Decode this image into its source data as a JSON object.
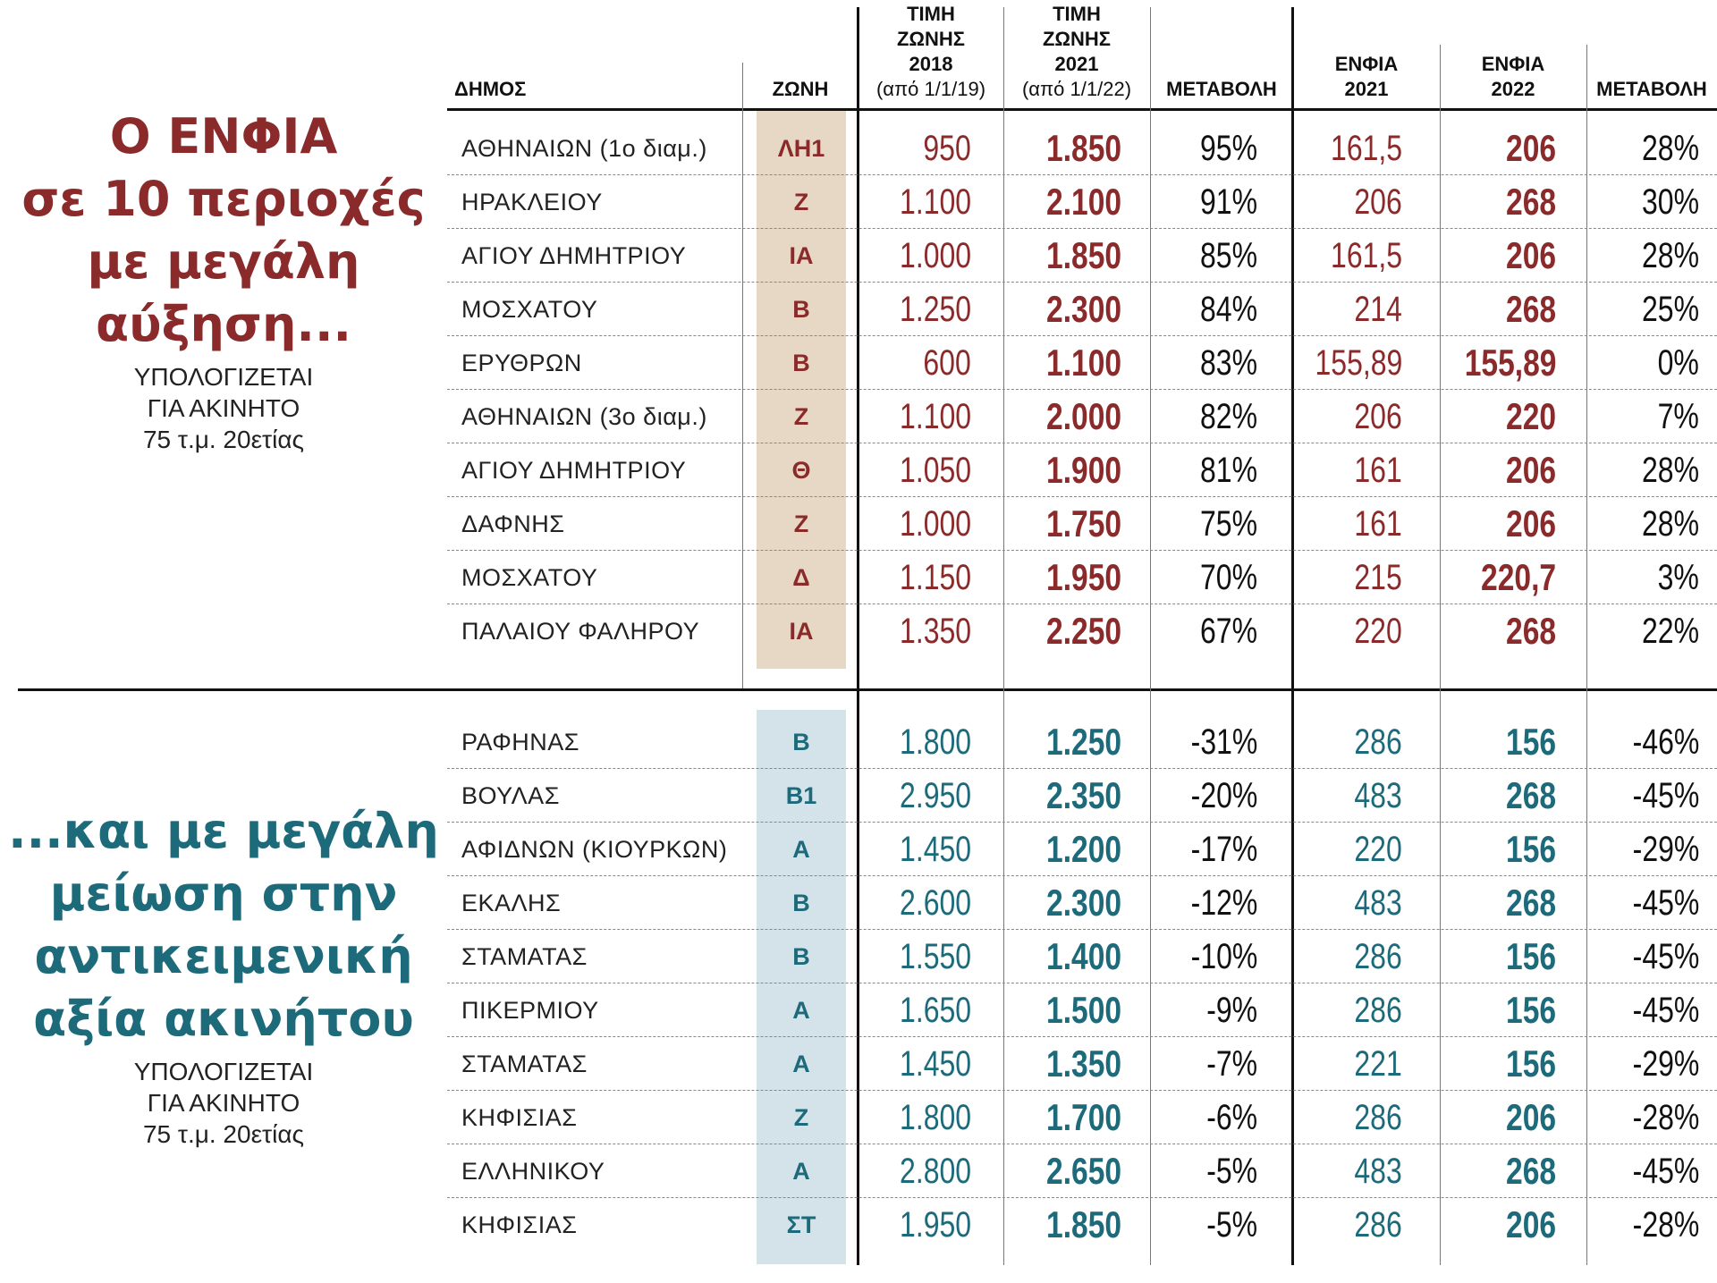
{
  "headers": {
    "dimos": "ΔΗΜΟΣ",
    "zoni": "ΖΩΝΗ",
    "timi2018": {
      "title": [
        "ΤΙΜΗ",
        "ΖΩΝΗΣ",
        "2018"
      ],
      "sub": "(από 1/1/19)"
    },
    "timi2021": {
      "title": [
        "ΤΙΜΗ",
        "ΖΩΝΗΣ",
        "2021"
      ],
      "sub": "(από 1/1/22)"
    },
    "metavoli1": "ΜΕΤΑΒΟΛΗ",
    "enfia2021": [
      "ΕΝΦΙΑ",
      "2021"
    ],
    "enfia2022": [
      "ΕΝΦΙΑ",
      "2022"
    ],
    "metavoli2": "ΜΕΤΑΒΟΛΗ"
  },
  "section_increase": {
    "title_lines": [
      "Ο ΕΝΦΙΑ",
      "σε 10 περιοχές",
      "με μεγάλη",
      "αύξηση..."
    ],
    "note_lines": [
      "ΥΠΟΛΟΓΙΖΕΤΑΙ",
      "ΓΙΑ ΑΚΙΝΗΤΟ",
      "75 τ.μ. 20ετίας"
    ],
    "rows": [
      {
        "dimos": "ΑΘΗΝΑΙΩΝ (1ο διαμ.)",
        "zoni": "ΛΗ1",
        "t2018": "950",
        "t2021": "1.850",
        "metavoli_timis": "95%",
        "enfia2021": "161,5",
        "enfia2022": "206",
        "metavoli_enfia": "28%"
      },
      {
        "dimos": "ΗΡΑΚΛΕΙΟΥ",
        "zoni": "Ζ",
        "t2018": "1.100",
        "t2021": "2.100",
        "metavoli_timis": "91%",
        "enfia2021": "206",
        "enfia2022": "268",
        "metavoli_enfia": "30%"
      },
      {
        "dimos": "ΑΓΙΟΥ ΔΗΜΗΤΡΙΟΥ",
        "zoni": "ΙΑ",
        "t2018": "1.000",
        "t2021": "1.850",
        "metavoli_timis": "85%",
        "enfia2021": "161,5",
        "enfia2022": "206",
        "metavoli_enfia": "28%"
      },
      {
        "dimos": "ΜΟΣΧΑΤΟΥ",
        "zoni": "Β",
        "t2018": "1.250",
        "t2021": "2.300",
        "metavoli_timis": "84%",
        "enfia2021": "214",
        "enfia2022": "268",
        "metavoli_enfia": "25%"
      },
      {
        "dimos": "ΕΡΥΘΡΩΝ",
        "zoni": "Β",
        "t2018": "600",
        "t2021": "1.100",
        "metavoli_timis": "83%",
        "enfia2021": "155,89",
        "enfia2022": "155,89",
        "metavoli_enfia": "0%"
      },
      {
        "dimos": "ΑΘΗΝΑΙΩΝ (3ο διαμ.)",
        "zoni": "Ζ",
        "t2018": "1.100",
        "t2021": "2.000",
        "metavoli_timis": "82%",
        "enfia2021": "206",
        "enfia2022": "220",
        "metavoli_enfia": "7%"
      },
      {
        "dimos": "ΑΓΙΟΥ ΔΗΜΗΤΡΙΟΥ",
        "zoni": "Θ",
        "t2018": "1.050",
        "t2021": "1.900",
        "metavoli_timis": "81%",
        "enfia2021": "161",
        "enfia2022": "206",
        "metavoli_enfia": "28%"
      },
      {
        "dimos": "ΔΑΦΝΗΣ",
        "zoni": "Ζ",
        "t2018": "1.000",
        "t2021": "1.750",
        "metavoli_timis": "75%",
        "enfia2021": "161",
        "enfia2022": "206",
        "metavoli_enfia": "28%"
      },
      {
        "dimos": "ΜΟΣΧΑΤΟΥ",
        "zoni": "Δ",
        "t2018": "1.150",
        "t2021": "1.950",
        "metavoli_timis": "70%",
        "enfia2021": "215",
        "enfia2022": "220,7",
        "metavoli_enfia": "3%"
      },
      {
        "dimos": "ΠΑΛΑΙΟΥ ΦΑΛΗΡΟΥ",
        "zoni": "ΙΑ",
        "t2018": "1.350",
        "t2021": "2.250",
        "metavoli_timis": "67%",
        "enfia2021": "220",
        "enfia2022": "268",
        "metavoli_enfia": "22%"
      }
    ]
  },
  "section_decrease": {
    "title_lines": [
      "...και με μεγάλη",
      "μείωση στην",
      "αντικειμενική",
      "αξία ακινήτου"
    ],
    "note_lines": [
      "ΥΠΟΛΟΓΙΖΕΤΑΙ",
      "ΓΙΑ ΑΚΙΝΗΤΟ",
      "75 τ.μ. 20ετίας"
    ],
    "rows": [
      {
        "dimos": "ΡΑΦΗΝΑΣ",
        "zoni": "Β",
        "t2018": "1.800",
        "t2021": "1.250",
        "metavoli_timis": "-31%",
        "enfia2021": "286",
        "enfia2022": "156",
        "metavoli_enfia": "-46%"
      },
      {
        "dimos": "ΒΟΥΛΑΣ",
        "zoni": "Β1",
        "t2018": "2.950",
        "t2021": "2.350",
        "metavoli_timis": "-20%",
        "enfia2021": "483",
        "enfia2022": "268",
        "metavoli_enfia": "-45%"
      },
      {
        "dimos": "ΑΦΙΔΝΩΝ (ΚΙΟΥΡΚΩΝ)",
        "zoni": "Α",
        "t2018": "1.450",
        "t2021": "1.200",
        "metavoli_timis": "-17%",
        "enfia2021": "220",
        "enfia2022": "156",
        "metavoli_enfia": "-29%"
      },
      {
        "dimos": "ΕΚΑΛΗΣ",
        "zoni": "Β",
        "t2018": "2.600",
        "t2021": "2.300",
        "metavoli_timis": "-12%",
        "enfia2021": "483",
        "enfia2022": "268",
        "metavoli_enfia": "-45%"
      },
      {
        "dimos": "ΣΤΑΜΑΤΑΣ",
        "zoni": "Β",
        "t2018": "1.550",
        "t2021": "1.400",
        "metavoli_timis": "-10%",
        "enfia2021": "286",
        "enfia2022": "156",
        "metavoli_enfia": "-45%"
      },
      {
        "dimos": "ΠΙΚΕΡΜΙΟΥ",
        "zoni": "Α",
        "t2018": "1.650",
        "t2021": "1.500",
        "metavoli_timis": "-9%",
        "enfia2021": "286",
        "enfia2022": "156",
        "metavoli_enfia": "-45%"
      },
      {
        "dimos": "ΣΤΑΜΑΤΑΣ",
        "zoni": "Α",
        "t2018": "1.450",
        "t2021": "1.350",
        "metavoli_timis": "-7%",
        "enfia2021": "221",
        "enfia2022": "156",
        "metavoli_enfia": "-29%"
      },
      {
        "dimos": "ΚΗΦΙΣΙΑΣ",
        "zoni": "Ζ",
        "t2018": "1.800",
        "t2021": "1.700",
        "metavoli_timis": "-6%",
        "enfia2021": "286",
        "enfia2022": "206",
        "metavoli_enfia": "-28%"
      },
      {
        "dimos": "ΕΛΛΗΝΙΚΟΥ",
        "zoni": "Α",
        "t2018": "2.800",
        "t2021": "2.650",
        "metavoli_timis": "-5%",
        "enfia2021": "483",
        "enfia2022": "268",
        "metavoli_enfia": "-45%"
      },
      {
        "dimos": "ΚΗΦΙΣΙΑΣ",
        "zoni": "ΣΤ",
        "t2018": "1.950",
        "t2021": "1.850",
        "metavoli_timis": "-5%",
        "enfia2021": "286",
        "enfia2022": "206",
        "metavoli_enfia": "-28%"
      }
    ]
  },
  "colors": {
    "increase_accent": "#8b2a2b",
    "decrease_accent": "#1c6a7a",
    "increase_zone_bg": "#e7d8c6",
    "decrease_zone_bg": "#d4e3ea"
  }
}
